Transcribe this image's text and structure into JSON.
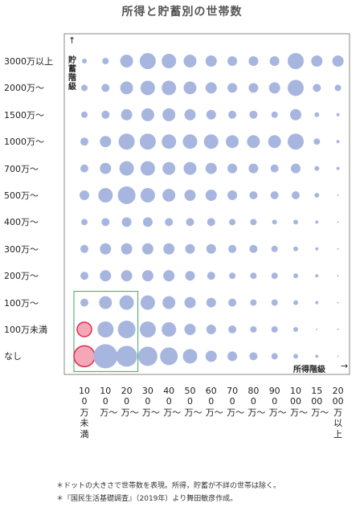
{
  "title": "所得と貯蓄別の世帯数",
  "chart_data": {
    "type": "bubble-grid",
    "title": "所得と貯蓄別の世帯数",
    "xlabel": "所得階級",
    "ylabel": "貯蓄階級",
    "x_categories": [
      "100万未満",
      "100万〜",
      "200万〜",
      "300万〜",
      "400万〜",
      "500万〜",
      "600万〜",
      "700万〜",
      "800万〜",
      "900万〜",
      "1000万〜",
      "1500万〜",
      "2000万以上"
    ],
    "y_categories": [
      "3000万以上",
      "2000万〜",
      "1500万〜",
      "1000万〜",
      "700万〜",
      "500万〜",
      "400万〜",
      "300万〜",
      "200万〜",
      "100万〜",
      "100万未満",
      "なし"
    ],
    "sizes": [
      [
        3,
        4,
        8,
        10,
        9,
        8,
        7,
        6,
        6,
        6,
        10,
        7,
        7
      ],
      [
        4,
        5,
        8,
        9,
        9,
        8,
        7,
        6,
        6,
        7,
        10,
        5,
        4
      ],
      [
        4,
        5,
        7,
        8,
        8,
        7,
        6,
        5,
        5,
        4,
        7,
        3,
        2
      ],
      [
        5,
        7,
        10,
        10,
        9,
        9,
        9,
        8,
        8,
        8,
        10,
        4,
        2
      ],
      [
        5,
        7,
        9,
        9,
        8,
        8,
        7,
        6,
        6,
        5,
        6,
        3,
        2
      ],
      [
        6,
        9,
        11,
        9,
        8,
        7,
        7,
        6,
        5,
        5,
        5,
        3,
        1
      ],
      [
        4,
        5,
        6,
        6,
        5,
        5,
        5,
        4,
        4,
        3,
        3,
        2,
        1
      ],
      [
        5,
        7,
        7,
        7,
        7,
        6,
        6,
        5,
        5,
        4,
        3,
        2,
        1
      ],
      [
        5,
        7,
        7,
        7,
        7,
        6,
        5,
        4,
        4,
        4,
        3,
        2,
        1
      ],
      [
        5,
        8,
        9,
        9,
        8,
        7,
        6,
        5,
        4,
        4,
        3,
        2,
        1
      ],
      [
        9,
        10,
        11,
        10,
        9,
        7,
        6,
        5,
        4,
        4,
        3,
        1,
        1
      ],
      [
        13,
        15,
        13,
        12,
        11,
        9,
        7,
        6,
        5,
        4,
        3,
        2,
        1
      ]
    ],
    "dot_color": "#a7b6de",
    "highlight_color": "#e32a50",
    "highlight_fill": "#f4a7b6",
    "highlight_box_color": "#3aa85c",
    "highlighted_cells": [
      [
        11,
        0
      ],
      [
        10,
        0
      ]
    ],
    "highlight_box": {
      "rows": [
        9,
        11
      ],
      "cols": [
        0,
        2
      ]
    },
    "grid": false
  },
  "notes": [
    "＊ドットの大きさで世帯数を表現。所得，貯蓄が不詳の世帯は除く。",
    "＊『国民生活基礎調査』（2019年）より舞田敏彦作成。"
  ],
  "axis": {
    "x_label": "所得階級",
    "y_label": "貯蓄階級",
    "x_arrow": "→",
    "y_arrow": "↑"
  }
}
